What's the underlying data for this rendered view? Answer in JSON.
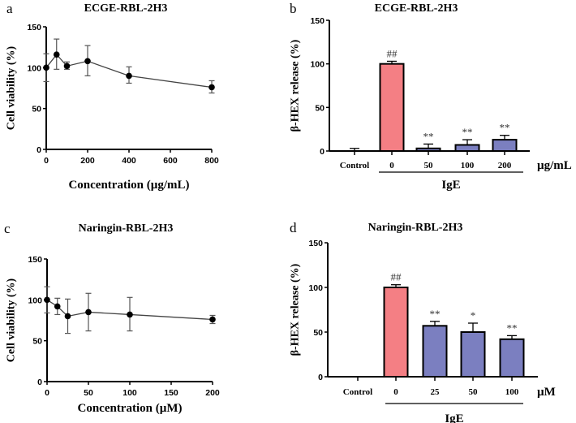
{
  "chart_data": [
    {
      "panel": "a",
      "type": "line",
      "title": "ECGE-RBL-2H3",
      "xlabel": "Concentration (µg/mL)",
      "ylabel": "Cell viability (%)",
      "xlim": [
        0,
        800
      ],
      "ylim": [
        0,
        150
      ],
      "xticks": [
        0,
        200,
        400,
        600,
        800
      ],
      "yticks": [
        0,
        50,
        100,
        150
      ],
      "grid": false,
      "x": [
        0,
        50,
        100,
        200,
        400,
        800
      ],
      "y": [
        100,
        116,
        102,
        108,
        90,
        76
      ],
      "err_low": [
        83,
        98,
        98,
        90,
        81,
        69
      ],
      "err_high": [
        117,
        135,
        107,
        127,
        101,
        84
      ],
      "color": "#000000"
    },
    {
      "panel": "b",
      "type": "bar",
      "title": "ECGE-RBL-2H3",
      "ylabel": "β-HEX release (%)",
      "ylim": [
        0,
        150
      ],
      "yticks": [
        0,
        50,
        100,
        150
      ],
      "categories": [
        "Control",
        "0",
        "50",
        "100",
        "200"
      ],
      "values": [
        0,
        100,
        3,
        7,
        13
      ],
      "err_high": [
        3,
        103,
        8,
        13,
        18
      ],
      "annotations": [
        "",
        "##",
        "**",
        "**",
        "**"
      ],
      "bar_colors": [
        "#ffffff",
        "#f47f84",
        "#7b7fc0",
        "#7b7fc0",
        "#7b7fc0"
      ],
      "unit": "µg/mL",
      "group_label": "IgE"
    },
    {
      "panel": "c",
      "type": "line",
      "title": "Naringin-RBL-2H3",
      "xlabel": "Concentration (µM)",
      "ylabel": "Cell viability (%)",
      "xlim": [
        0,
        200
      ],
      "ylim": [
        0,
        150
      ],
      "xticks": [
        0,
        50,
        100,
        150,
        200
      ],
      "yticks": [
        0,
        50,
        100,
        150
      ],
      "grid": false,
      "x": [
        0,
        12.5,
        25,
        50,
        100,
        200
      ],
      "y": [
        100,
        92,
        80,
        85,
        82,
        76
      ],
      "err_low": [
        84,
        82,
        59,
        62,
        62,
        71
      ],
      "err_high": [
        116,
        102,
        101,
        108,
        103,
        81
      ],
      "color": "#000000"
    },
    {
      "panel": "d",
      "type": "bar",
      "title": "Naringin-RBL-2H3",
      "ylabel": "β-HEX release (%)",
      "ylim": [
        0,
        150
      ],
      "yticks": [
        0,
        50,
        100,
        150
      ],
      "categories": [
        "Control",
        "0",
        "25",
        "50",
        "100"
      ],
      "values": [
        0,
        100,
        57,
        50,
        42
      ],
      "err_high": [
        0,
        103,
        62,
        60,
        46
      ],
      "annotations": [
        "",
        "##",
        "**",
        "*",
        "**"
      ],
      "bar_colors": [
        "#ffffff",
        "#f47f84",
        "#7b7fc0",
        "#7b7fc0",
        "#7b7fc0"
      ],
      "unit": "µM",
      "group_label": "IgE"
    }
  ]
}
